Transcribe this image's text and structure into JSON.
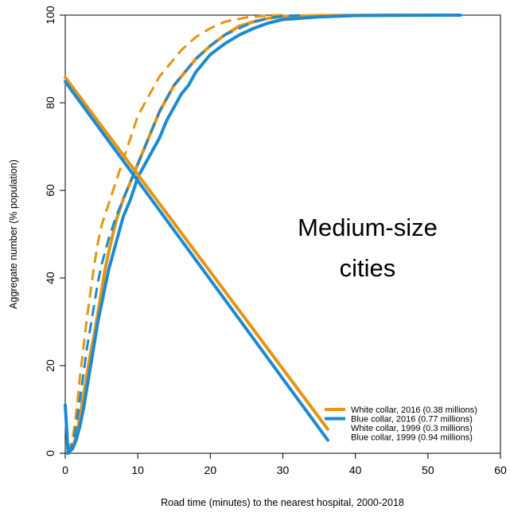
{
  "chart_data": {
    "type": "line",
    "title": "",
    "xlabel": "Road time (minutes) to the nearest hospital, 2000-2018",
    "ylabel": "Aggregate number (% population)",
    "xlim": [
      0,
      60
    ],
    "ylim": [
      0,
      100
    ],
    "x_ticks": [
      0,
      10,
      20,
      30,
      40,
      50,
      60
    ],
    "y_ticks": [
      0,
      20,
      40,
      60,
      80,
      100
    ],
    "grid": false,
    "legend_position": "bottom-right",
    "annotation": {
      "line1": "Medium-size",
      "line2": "cities"
    },
    "colors": {
      "white_collar": "#E69512",
      "blue_collar": "#1C8AD2"
    },
    "series": [
      {
        "name": "White collar, 2016 (0.38 millions)",
        "color": "#E69512",
        "dashed": false,
        "legend_line": true,
        "points": [
          [
            0.4,
            0
          ],
          [
            1,
            1
          ],
          [
            1.5,
            4
          ],
          [
            2,
            8
          ],
          [
            2.5,
            13
          ],
          [
            3,
            18
          ],
          [
            3.5,
            23
          ],
          [
            4,
            27
          ],
          [
            4.5,
            32
          ],
          [
            5,
            37
          ],
          [
            5.5,
            42
          ],
          [
            6,
            46
          ],
          [
            7,
            53
          ],
          [
            8,
            58
          ],
          [
            9,
            62
          ],
          [
            10,
            66
          ],
          [
            11,
            70
          ],
          [
            12,
            74
          ],
          [
            13,
            78
          ],
          [
            14,
            81
          ],
          [
            15,
            84
          ],
          [
            16,
            86
          ],
          [
            17,
            88
          ],
          [
            18,
            90
          ],
          [
            20,
            93
          ],
          [
            22,
            95.5
          ],
          [
            24,
            97.5
          ],
          [
            26,
            98.5
          ],
          [
            28,
            99.3
          ],
          [
            30,
            99.7
          ],
          [
            35,
            99.9
          ],
          [
            45,
            100
          ],
          [
            54.5,
            100
          ]
        ]
      },
      {
        "name": "Blue collar, 2016 (0.77 millions)",
        "color": "#1C8AD2",
        "dashed": false,
        "legend_line": true,
        "points": [
          [
            0.3,
            0
          ],
          [
            1,
            1
          ],
          [
            1.5,
            3
          ],
          [
            2,
            6
          ],
          [
            2.5,
            10
          ],
          [
            3,
            15
          ],
          [
            3.5,
            20
          ],
          [
            4,
            25
          ],
          [
            4.5,
            30
          ],
          [
            5,
            34
          ],
          [
            5.5,
            38
          ],
          [
            6,
            42
          ],
          [
            7,
            48
          ],
          [
            8,
            54
          ],
          [
            9,
            58
          ],
          [
            10,
            63
          ],
          [
            11,
            66
          ],
          [
            12,
            69
          ],
          [
            13,
            72
          ],
          [
            14,
            76
          ],
          [
            15,
            79
          ],
          [
            16,
            82
          ],
          [
            17,
            84
          ],
          [
            18,
            87
          ],
          [
            19,
            89
          ],
          [
            20,
            91
          ],
          [
            22,
            93.5
          ],
          [
            24,
            95.5
          ],
          [
            26,
            97
          ],
          [
            28,
            98.2
          ],
          [
            30,
            99
          ],
          [
            35,
            99.6
          ],
          [
            40,
            99.9
          ],
          [
            54.5,
            100
          ]
        ]
      },
      {
        "name": "White collar, 1999 (0.3 millions)",
        "color": "#E69512",
        "dashed": true,
        "legend_line": false,
        "points": [
          [
            0.3,
            0
          ],
          [
            1,
            3
          ],
          [
            1.5,
            9
          ],
          [
            2,
            17
          ],
          [
            2.5,
            24
          ],
          [
            3,
            31
          ],
          [
            3.5,
            37
          ],
          [
            4,
            43
          ],
          [
            4.5,
            48
          ],
          [
            5,
            52
          ],
          [
            6,
            57
          ],
          [
            7,
            62
          ],
          [
            8,
            67
          ],
          [
            9,
            72
          ],
          [
            10,
            77
          ],
          [
            11,
            80
          ],
          [
            12,
            83
          ],
          [
            13,
            86
          ],
          [
            14,
            88
          ],
          [
            15,
            90
          ],
          [
            16,
            92
          ],
          [
            17,
            93.5
          ],
          [
            18,
            95
          ],
          [
            20,
            97
          ],
          [
            22,
            98.5
          ],
          [
            25,
            99.5
          ],
          [
            28,
            99.9
          ],
          [
            30,
            100
          ]
        ]
      },
      {
        "name": "Blue collar, 1999 (0.94 millions)",
        "color": "#1C8AD2",
        "dashed": true,
        "legend_line": false,
        "points": [
          [
            0.3,
            0
          ],
          [
            1,
            2
          ],
          [
            1.5,
            6
          ],
          [
            2,
            12
          ],
          [
            2.5,
            18
          ],
          [
            3,
            24
          ],
          [
            3.5,
            29
          ],
          [
            4,
            34
          ],
          [
            4.5,
            39
          ],
          [
            5,
            43
          ],
          [
            6,
            49
          ],
          [
            7,
            54
          ],
          [
            8,
            58
          ],
          [
            9,
            62
          ],
          [
            10,
            66
          ],
          [
            11,
            70
          ],
          [
            12,
            74
          ],
          [
            13,
            78
          ],
          [
            14,
            81
          ],
          [
            15,
            84
          ],
          [
            16,
            86
          ],
          [
            17,
            88
          ],
          [
            18,
            90
          ],
          [
            20,
            93
          ],
          [
            22,
            95.5
          ],
          [
            24,
            97
          ],
          [
            26,
            98.5
          ],
          [
            28,
            99.3
          ],
          [
            30,
            99.8
          ],
          [
            33,
            100
          ]
        ]
      },
      {
        "name": "",
        "color": "#E69512",
        "dashed": false,
        "legend_line": false,
        "points": [
          [
            0,
            85.8
          ],
          [
            36.2,
            5.5
          ]
        ]
      },
      {
        "name": "",
        "color": "#1C8AD2",
        "dashed": false,
        "legend_line": false,
        "points": [
          [
            0,
            84.8
          ],
          [
            36.2,
            3
          ]
        ]
      },
      {
        "name": "",
        "color": "#1C8AD2",
        "dashed": false,
        "legend_line": false,
        "points": [
          [
            0,
            11
          ],
          [
            0.4,
            0
          ]
        ]
      }
    ]
  }
}
